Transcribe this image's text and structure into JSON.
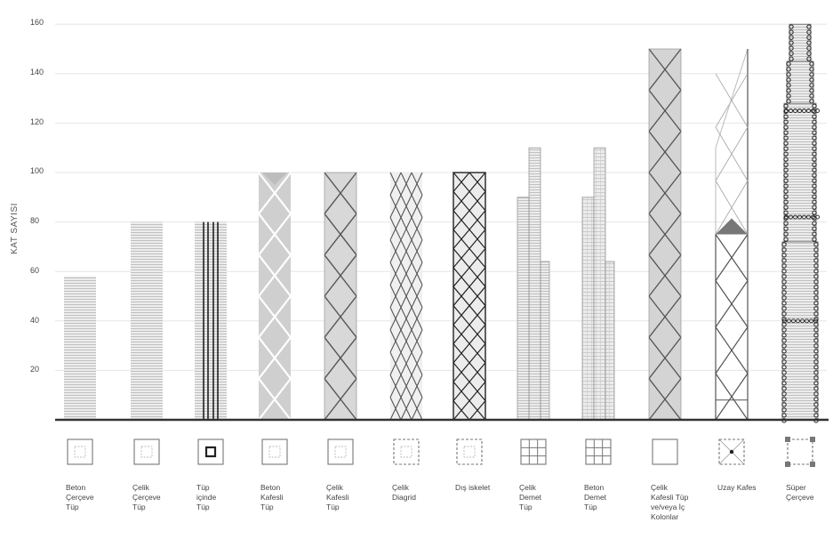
{
  "axis": {
    "ylabel": "KAT SAYISI",
    "ticks": [
      "160",
      "140",
      "120",
      "100",
      "80",
      "60",
      "40",
      "20"
    ]
  },
  "systems": [
    {
      "id": "beton-cerceve-tup",
      "label_lines": [
        "Beton",
        "Çerçeve",
        "Tüp"
      ],
      "floors": 58
    },
    {
      "id": "celik-cerceve-tup",
      "label_lines": [
        "Çelik",
        "Çerçeve",
        "Tüp"
      ],
      "floors": 80
    },
    {
      "id": "tup-icinde-tup",
      "label_lines": [
        "Tüp",
        "içinde",
        "Tüp"
      ],
      "floors": 80
    },
    {
      "id": "beton-kafesli-tup",
      "label_lines": [
        "Beton",
        "Kafesli",
        "Tüp"
      ],
      "floors": 100
    },
    {
      "id": "celik-kafesli-tup",
      "label_lines": [
        "Çelik",
        "Kafesli",
        "Tüp"
      ],
      "floors": 100
    },
    {
      "id": "celik-diagrid",
      "label_lines": [
        "Çelik",
        "Diagrid"
      ],
      "floors": 100
    },
    {
      "id": "dis-iskelet",
      "label_lines": [
        "Dış iskelet"
      ],
      "floors": 100
    },
    {
      "id": "celik-demet-tup",
      "label_lines": [
        "Çelik",
        "Demet",
        "Tüp"
      ],
      "floors": 110
    },
    {
      "id": "beton-demet-tup",
      "label_lines": [
        "Beton",
        "Demet",
        "Tüp"
      ],
      "floors": 110
    },
    {
      "id": "celik-kafesli-tup-ic-kolonlar",
      "label_lines": [
        "Çelik",
        "Kafesli Tüp",
        "ve/veya İç",
        "Kolonlar"
      ],
      "floors": 150
    },
    {
      "id": "uzay-kafes",
      "label_lines": [
        "Uzay Kafes"
      ],
      "floors": 150
    },
    {
      "id": "super-cerceve",
      "label_lines": [
        "Süper",
        "Çerçeve"
      ],
      "floors": 160
    }
  ],
  "colors": {
    "axis": "#333333",
    "grid": "#e6e6e6",
    "fill_light": "#e4e4e4",
    "fill_mid": "#cfcfcf",
    "line": "#555555",
    "dark": "#222222"
  }
}
